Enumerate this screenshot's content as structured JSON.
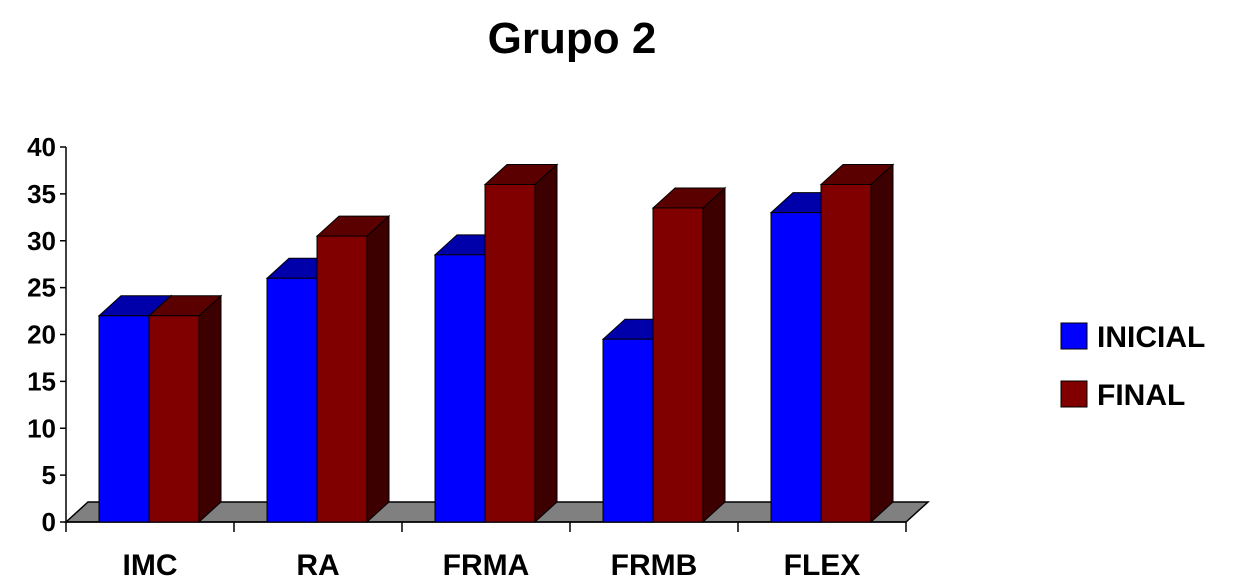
{
  "chart_data": {
    "type": "bar",
    "title": "Grupo 2",
    "categories": [
      "IMC",
      "RA",
      "FRMA",
      "FRMB",
      "FLEX"
    ],
    "series": [
      {
        "name": "INICIAL",
        "values": [
          22,
          26,
          28.5,
          19.5,
          33
        ],
        "color": "#0000ff",
        "top_color": "#0000aa",
        "side_color": "#00007a"
      },
      {
        "name": "FINAL",
        "values": [
          22,
          30.5,
          36,
          33.5,
          36
        ],
        "color": "#800000",
        "top_color": "#5a0000",
        "side_color": "#3d0000"
      }
    ],
    "yticks": [
      "0",
      "5",
      "10",
      "15",
      "20",
      "25",
      "30",
      "35",
      "40"
    ],
    "ylim": [
      0,
      40
    ],
    "style": "3d-clustered-column",
    "floor_color": "#808080",
    "grid": false,
    "legend_position": "right"
  }
}
